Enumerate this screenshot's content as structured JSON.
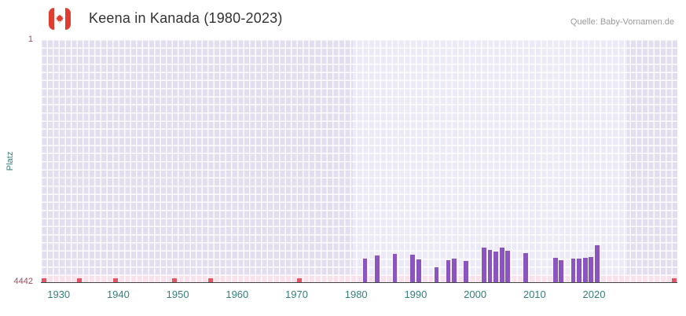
{
  "header": {
    "title": "Keena in Kanada (1980-2023)",
    "source": "Quelle: Baby-Vornamen.de",
    "flag_icon": "canada-flag"
  },
  "chart_data": {
    "type": "bar",
    "title": "Keena in Kanada (1980-2023)",
    "xlabel": "",
    "ylabel": "Platz",
    "grid": true,
    "legend": "none",
    "y_axis": {
      "inverted": true,
      "top_value": 1,
      "bottom_value": 4442,
      "tick_labels": [
        "1",
        "4442"
      ]
    },
    "x_axis": {
      "start": 1927,
      "end": 2034,
      "ticks": [
        {
          "year": 1930,
          "label": "1930"
        },
        {
          "year": 1940,
          "label": "1940"
        },
        {
          "year": 1950,
          "label": "1950"
        },
        {
          "year": 1960,
          "label": "1960"
        },
        {
          "year": 1970,
          "label": "1970"
        },
        {
          "year": 1980,
          "label": "1980"
        },
        {
          "year": 1990,
          "label": "1990"
        },
        {
          "year": 2000,
          "label": "2000"
        },
        {
          "year": 2010,
          "label": "2010"
        },
        {
          "year": 2020,
          "label": "2020"
        }
      ]
    },
    "coverage_region": {
      "start": 1979.5,
      "end": 2025.5
    },
    "series": [
      {
        "name": "Platz",
        "points": [
          {
            "year": 1981,
            "rank": 4010
          },
          {
            "year": 1983,
            "rank": 3955
          },
          {
            "year": 1986,
            "rank": 3930
          },
          {
            "year": 1989,
            "rank": 3940
          },
          {
            "year": 1990,
            "rank": 4025
          },
          {
            "year": 1993,
            "rank": 4170
          },
          {
            "year": 1995,
            "rank": 4040
          },
          {
            "year": 1996,
            "rank": 4010
          },
          {
            "year": 1998,
            "rank": 4055
          },
          {
            "year": 2001,
            "rank": 3815
          },
          {
            "year": 2002,
            "rank": 3855
          },
          {
            "year": 2003,
            "rank": 3885
          },
          {
            "year": 2004,
            "rank": 3815
          },
          {
            "year": 2005,
            "rank": 3870
          },
          {
            "year": 2008,
            "rank": 3915
          },
          {
            "year": 2013,
            "rank": 4000
          },
          {
            "year": 2014,
            "rank": 4040
          },
          {
            "year": 2016,
            "rank": 4015
          },
          {
            "year": 2017,
            "rank": 4010
          },
          {
            "year": 2018,
            "rank": 4000
          },
          {
            "year": 2019,
            "rank": 3985
          },
          {
            "year": 2020,
            "rank": 3770
          }
        ]
      }
    ],
    "unranked_marks_years": [
      1927,
      1933,
      1939,
      1949,
      1955,
      1970,
      2033
    ]
  },
  "colors": {
    "bar": "#8a55be",
    "plot_bg": "#e3deef",
    "coverage_bg": "#edeaf7",
    "strip_bg": "#f8e1eb",
    "mark": "#e25566",
    "tick_teal": "#35807d",
    "tick_maroon": "#994f5c",
    "title_text": "#333333",
    "source_text": "#9b9b9b",
    "flag_red": "#e03c31",
    "axis_line": "#444444"
  }
}
